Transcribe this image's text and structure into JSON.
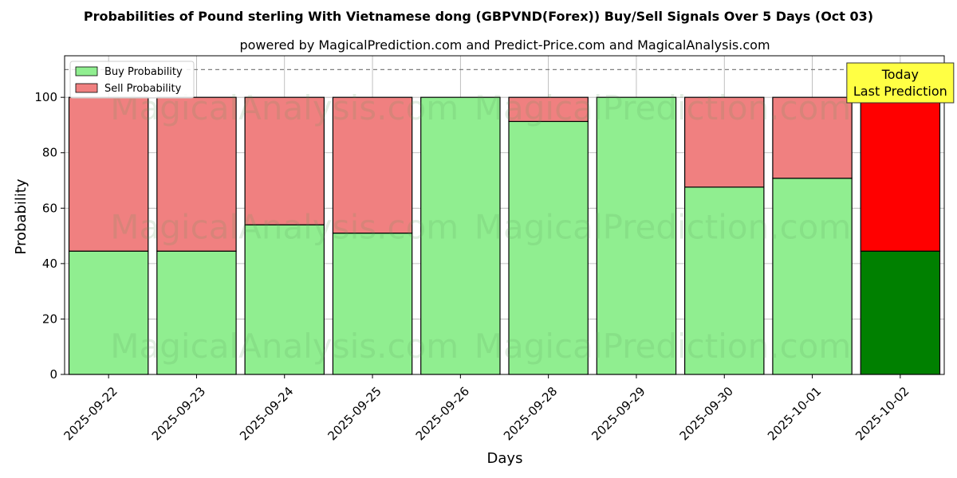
{
  "chart_data": {
    "type": "bar",
    "stacked": true,
    "title": "Probabilities of Pound sterling With Vietnamese dong (GBPVND(Forex)) Buy/Sell Signals Over 5 Days (Oct 03)",
    "subtitle": "powered by MagicalPrediction.com and Predict-Price.com and MagicalAnalysis.com",
    "xlabel": "Days",
    "ylabel": "Probability",
    "ylim": [
      0,
      115
    ],
    "yticks": [
      0,
      20,
      40,
      60,
      80,
      100
    ],
    "grid": true,
    "legend_position": "top-left",
    "categories": [
      "2025-09-22",
      "2025-09-23",
      "2025-09-24",
      "2025-09-25",
      "2025-09-26",
      "2025-09-28",
      "2025-09-29",
      "2025-09-30",
      "2025-10-01",
      "2025-10-02"
    ],
    "series": [
      {
        "name": "Buy Probability",
        "color": "#90ee90",
        "highlight_color": "#008000",
        "values": [
          44.5,
          44.5,
          54,
          51,
          100,
          91.3,
          100,
          67.6,
          70.8,
          44.5
        ]
      },
      {
        "name": "Sell Probability",
        "color": "#f08080",
        "highlight_color": "#ff0000",
        "values": [
          55.5,
          55.5,
          46,
          49,
          0,
          8.7,
          0,
          32.4,
          29.2,
          55.5
        ]
      }
    ],
    "reference_line": {
      "y": 110,
      "style": "dashed",
      "color": "#808080"
    },
    "highlighted_category_index": 9,
    "annotation": {
      "lines": [
        "Today",
        "Last Prediction"
      ],
      "background": "#ffff44"
    },
    "watermarks": [
      "MagicalAnalysis.com",
      "MagicalPrediction.com"
    ]
  }
}
